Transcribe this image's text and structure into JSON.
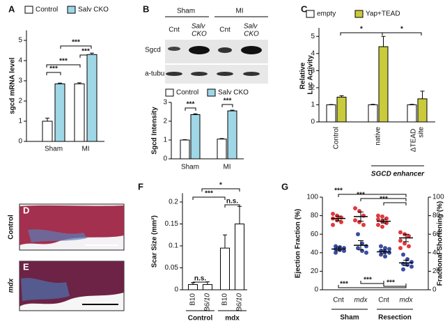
{
  "chart_data": [
    {
      "type": "bar",
      "panel": "A",
      "categories": [
        "Sham",
        "MI"
      ],
      "series": [
        {
          "name": "Control",
          "color": "#ffffff",
          "values": [
            1.0,
            2.85
          ],
          "errors": [
            0.15,
            0.05
          ]
        },
        {
          "name": "Salv CKO",
          "color": "#9fd7e6",
          "values": [
            2.85,
            4.3
          ],
          "errors": [
            0.04,
            0.07
          ]
        }
      ],
      "ylim": [
        0,
        5.5
      ],
      "yticks": [
        0,
        1,
        2,
        3,
        4,
        5
      ],
      "ylabel": "sgcd mRNA level",
      "annotations": [
        "***",
        "***",
        "***",
        "***"
      ]
    },
    {
      "type": "bar",
      "categories": [
        "Sham",
        "MI"
      ],
      "series": [
        {
          "name": "Control",
          "color": "#ffffff",
          "values": [
            1.0,
            1.05
          ],
          "errors": [
            0.02,
            0.03
          ]
        },
        {
          "name": "Salv CKO",
          "color": "#9fd7e6",
          "values": [
            2.35,
            2.55
          ],
          "errors": [
            0.04,
            0.04
          ]
        }
      ],
      "ylim": [
        0,
        3
      ],
      "yticks": [
        0,
        1,
        2,
        3
      ],
      "ylabel": "Sgcd Intensity",
      "annotations": [
        "***",
        "***"
      ]
    },
    {
      "type": "bar",
      "panel": "C",
      "categories": [
        "Control",
        "native",
        "ΔTEAD site"
      ],
      "series": [
        {
          "name": "empty",
          "color": "#ffffff",
          "values": [
            1,
            1,
            1
          ],
          "errors": [
            0.02,
            0.03,
            0.03
          ]
        },
        {
          "name": "Yap+TEAD",
          "color": "#c9ca3c",
          "values": [
            1.45,
            4.4,
            1.35
          ],
          "errors": [
            0.08,
            0.6,
            0.45
          ]
        }
      ],
      "ylim": [
        0,
        5.5
      ],
      "yticks": [
        0,
        1,
        2,
        3,
        4,
        5
      ],
      "ylabel": "Relative Luc Activity",
      "xlabel": "SGCD enhancer",
      "annotations": [
        "*",
        "*"
      ]
    },
    {
      "type": "bar",
      "panel": "F",
      "categories": [
        "B10",
        "B6/10",
        "B10",
        "B6/10"
      ],
      "groups": [
        "Control",
        "mdx"
      ],
      "series": [
        {
          "color": "#ffffff",
          "values": [
            0.012,
            0.012,
            0.095,
            0.15
          ],
          "errors": [
            0.004,
            0.006,
            0.03,
            0.04
          ]
        }
      ],
      "ylim": [
        0,
        0.22
      ],
      "yticks": [
        0,
        0.05,
        0.1,
        0.15,
        0.2
      ],
      "ylabel": "Scar Size (mm²)",
      "annotations": [
        "n.s.",
        "***",
        "n.s.",
        "*"
      ]
    },
    {
      "type": "strip",
      "panel": "G",
      "categories": [
        "Cnt",
        "mdx",
        "Cnt",
        "mdx"
      ],
      "groups": [
        "Sham",
        "Resection"
      ],
      "ylim": [
        0,
        100
      ],
      "yticks": [
        0,
        20,
        40,
        60,
        80,
        100
      ],
      "y2lim": [
        0,
        100
      ],
      "y2ticks": [
        0,
        20,
        40,
        60,
        80,
        100
      ],
      "ylabel": "Ejection Fraction (%)",
      "y2label": "Fractional Shortening (%)",
      "series": [
        {
          "color": "#e03a3e",
          "values": [
            77,
            79,
            74,
            56
          ],
          "errors": [
            2.5,
            5,
            2,
            4
          ],
          "points": [
            [
              82,
              80,
              78,
              77,
              75,
              73,
              70
            ],
            [
              88,
              85,
              80,
              75,
              73,
              70
            ],
            [
              80,
              79,
              77,
              76,
              74,
              72,
              70,
              68
            ],
            [
              62,
              60,
              58,
              53,
              50,
              47,
              45
            ]
          ]
        },
        {
          "axis": "y2",
          "color": "#3b4da3",
          "values": [
            44,
            48,
            41,
            29
          ],
          "errors": [
            2,
            5,
            2,
            3
          ],
          "points": [
            [
              47,
              46,
              45,
              44,
              43,
              42,
              40
            ],
            [
              60,
              50,
              47,
              45,
              42,
              40
            ],
            [
              47,
              45,
              44,
              42,
              41,
              40,
              38,
              36
            ],
            [
              38,
              33,
              30,
              28,
              27,
              25,
              22
            ]
          ]
        }
      ],
      "annotations": [
        "***",
        "***",
        "***",
        "***",
        "***",
        "***"
      ]
    }
  ],
  "blot": {
    "panel": "B",
    "conditions": [
      "Sham",
      "MI"
    ],
    "lanes": [
      "Cnt",
      "Salv CKO",
      "Cnt",
      "Salv CKO"
    ],
    "rows": [
      "Sgcd",
      "a-tubulin"
    ]
  },
  "histology": {
    "panels": [
      "D",
      "E"
    ],
    "labels": [
      "Control",
      "mdx"
    ]
  }
}
